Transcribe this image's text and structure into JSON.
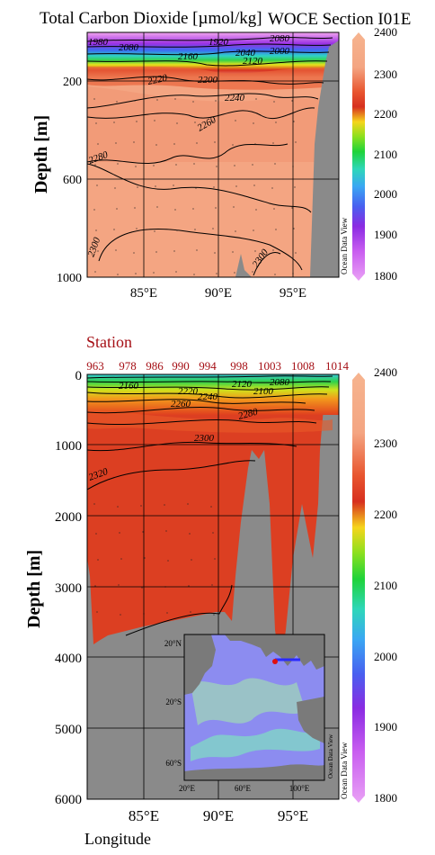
{
  "top": {
    "title_left": "Total Carbon Dioxide [µmol/kg]",
    "title_right": "WOCE Section I01E",
    "ylabel": "Depth [m]",
    "y_ticks": [
      "200",
      "600",
      "1000"
    ],
    "x_ticks": [
      "85°E",
      "90°E",
      "95°E"
    ],
    "watermark": "Ocean Data View",
    "colorbar_ticks": [
      "2400",
      "2300",
      "2200",
      "2100",
      "2000",
      "1900",
      "1800"
    ],
    "contour_labels": [
      "1980",
      "2080",
      "1920",
      "2080",
      "2000",
      "2160",
      "2040",
      "2120",
      "2220",
      "2200",
      "2240",
      "2260",
      "2280",
      "2300",
      "2300"
    ]
  },
  "bottom": {
    "station_label": "Station",
    "stations": [
      "963",
      "978",
      "986",
      "990",
      "994",
      "998",
      "1003",
      "1008",
      "1014"
    ],
    "ylabel": "Depth [m]",
    "y_ticks": [
      "0",
      "1000",
      "2000",
      "3000",
      "4000",
      "5000",
      "6000"
    ],
    "x_ticks": [
      "85°E",
      "90°E",
      "95°E"
    ],
    "xlabel": "Longitude",
    "watermark": "Ocean Data View",
    "colorbar_ticks": [
      "2400",
      "2300",
      "2200",
      "2100",
      "2000",
      "1900",
      "1800"
    ],
    "contour_labels": [
      "2160",
      "2220",
      "2240",
      "2260",
      "2120",
      "2100",
      "2080",
      "2280",
      "2300",
      "2320"
    ],
    "inset": {
      "lat_ticks": [
        "20°N",
        "20°S",
        "60°S"
      ],
      "lon_ticks": [
        "20°E",
        "60°E",
        "100°E"
      ],
      "watermark": "Ocean Data View"
    }
  },
  "colors": {
    "land": "#8a8a8a",
    "deep_top": "#f4a582",
    "deep_bottom": "#d7301f",
    "station_text": "#a50f15"
  },
  "chart_data": [
    {
      "type": "heatmap",
      "title": "Total Carbon Dioxide [µmol/kg]",
      "subtitle": "WOCE Section I01E",
      "ylabel": "Depth [m]",
      "ylim": [
        0,
        1000
      ],
      "xlim": [
        81,
        98
      ],
      "colorbar_range": [
        1800,
        2400
      ],
      "contour_levels": [
        1920,
        1980,
        2000,
        2040,
        2080,
        2120,
        2160,
        2200,
        2220,
        2240,
        2260,
        2280,
        2300
      ]
    },
    {
      "type": "heatmap",
      "xlabel": "Longitude",
      "ylabel": "Depth [m]",
      "ylim": [
        0,
        6000
      ],
      "xlim": [
        81,
        98
      ],
      "colorbar_range": [
        1800,
        2400
      ],
      "stations": [
        "963",
        "978",
        "986",
        "990",
        "994",
        "998",
        "1003",
        "1008",
        "1014"
      ],
      "contour_levels": [
        2080,
        2100,
        2120,
        2160,
        2220,
        2240,
        2260,
        2280,
        2300,
        2320
      ]
    }
  ]
}
